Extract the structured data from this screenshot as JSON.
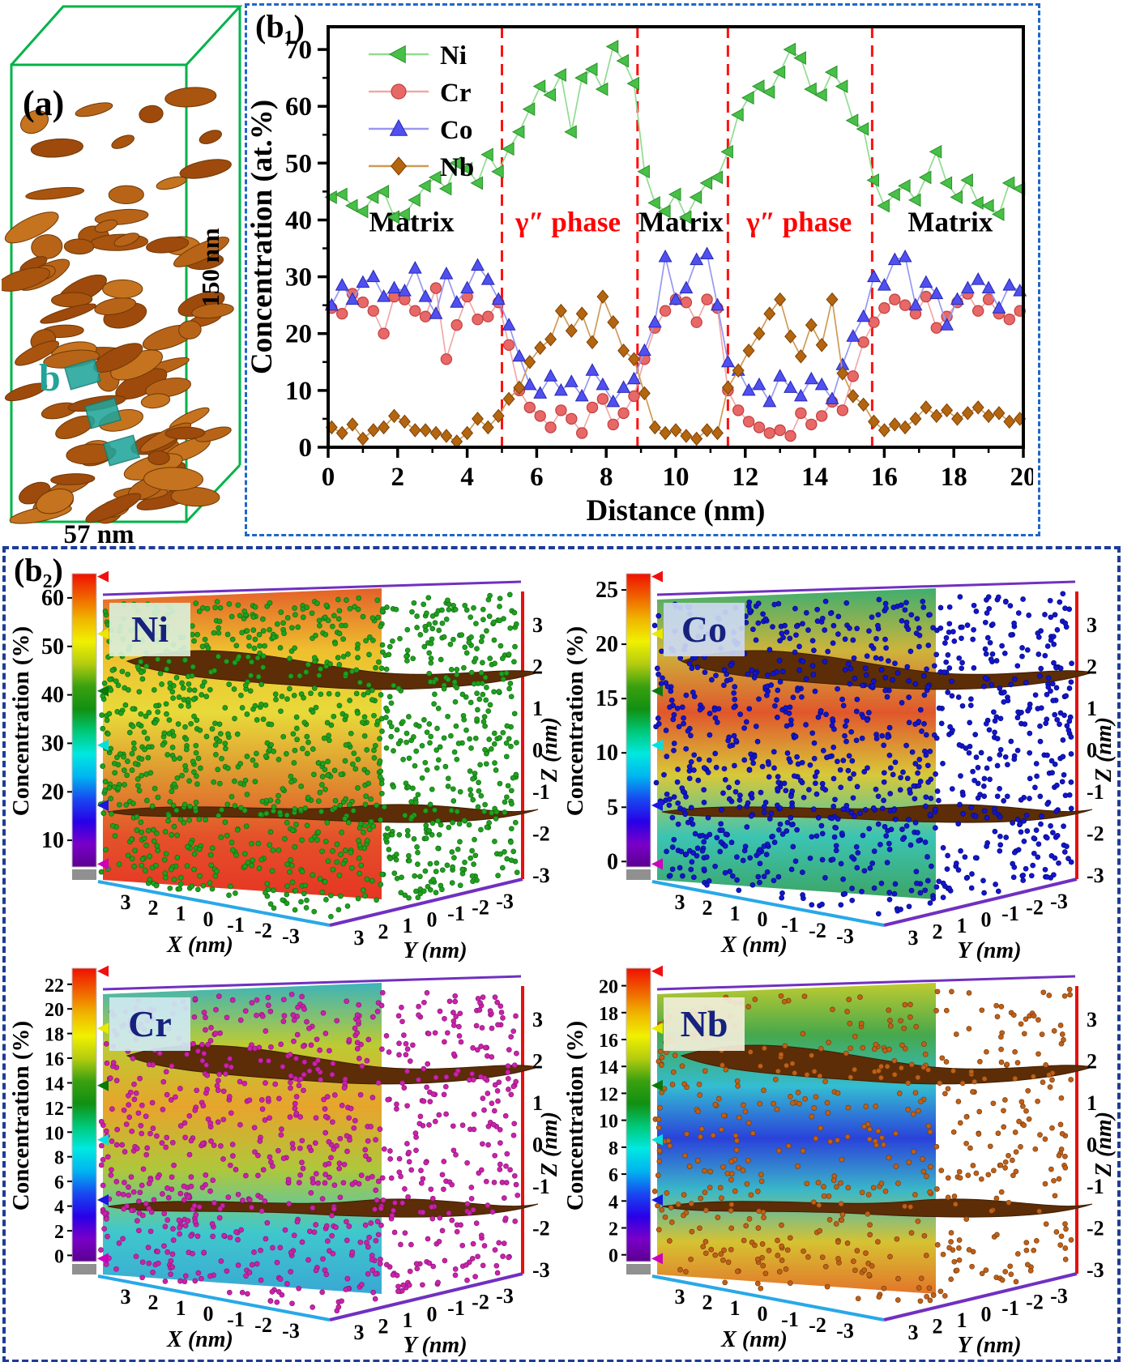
{
  "figure": {
    "panel_a_label": "(a)",
    "panel_b1_label": "(b₁)",
    "panel_b2_label": "(b₂)"
  },
  "panel_a": {
    "label": "(a)",
    "height_label": "150 nm",
    "width_label": "57 nm",
    "roi_label": "b",
    "box_color": "#00b34a",
    "roi_color": "#22a49a",
    "precipitate_shades": [
      "#a9540f",
      "#b86418",
      "#c5731f",
      "#9d4a0c"
    ]
  },
  "chart_data": [
    {
      "id": "b1_concentration_profile",
      "type": "line",
      "title": "",
      "xlabel": "Distance (nm)",
      "ylabel": "Concentration (at.%)",
      "xlim": [
        0,
        20
      ],
      "ylim": [
        0,
        74
      ],
      "xticks": [
        0,
        2,
        4,
        6,
        8,
        10,
        12,
        14,
        16,
        18,
        20
      ],
      "yticks": [
        0,
        10,
        20,
        30,
        40,
        50,
        60,
        70
      ],
      "grid": false,
      "legend_position": "top-left",
      "legend": [
        "Ni",
        "Cr",
        "Co",
        "Nb"
      ],
      "phase_boundaries": [
        5.0,
        8.9,
        11.5,
        15.65
      ],
      "boundary_line_color": "#ff1010",
      "region_labels": [
        {
          "text": "Matrix",
          "x": 2.4,
          "y": 38,
          "color": "#000000"
        },
        {
          "text": "γ″ phase",
          "x": 6.9,
          "y": 38,
          "color": "#ff0000"
        },
        {
          "text": "Matrix",
          "x": 10.15,
          "y": 38,
          "color": "#000000"
        },
        {
          "text": "γ″ phase",
          "x": 13.55,
          "y": 38,
          "color": "#ff0000"
        },
        {
          "text": "Matrix",
          "x": 17.9,
          "y": 38,
          "color": "#000000"
        }
      ],
      "x": [
        0.1,
        0.4,
        0.7,
        1,
        1.3,
        1.6,
        1.9,
        2.2,
        2.5,
        2.8,
        3.1,
        3.4,
        3.7,
        4,
        4.3,
        4.6,
        4.9,
        5.2,
        5.5,
        5.8,
        6.1,
        6.4,
        6.7,
        7,
        7.3,
        7.6,
        7.9,
        8.2,
        8.5,
        8.8,
        9.1,
        9.4,
        9.7,
        10,
        10.3,
        10.6,
        10.9,
        11.2,
        11.5,
        11.8,
        12.1,
        12.4,
        12.7,
        13,
        13.3,
        13.6,
        13.9,
        14.2,
        14.5,
        14.8,
        15.1,
        15.4,
        15.7,
        16,
        16.3,
        16.6,
        16.9,
        17.2,
        17.5,
        17.8,
        18.1,
        18.4,
        18.7,
        19,
        19.3,
        19.6,
        19.9
      ],
      "series": [
        {
          "name": "Ni",
          "marker": "triangle-left",
          "color": "#46c046",
          "edge": "#2e8f2e",
          "line_color": "#90dc90",
          "values": [
            44,
            44.5,
            42.5,
            41.5,
            44,
            45,
            40.5,
            41,
            43.5,
            46,
            47.5,
            45.5,
            50,
            49,
            46.5,
            51.5,
            48.5,
            52.5,
            55.5,
            59.5,
            63.5,
            62,
            65.5,
            55.5,
            65,
            66.5,
            63,
            70.5,
            68,
            64,
            48.5,
            43,
            41.5,
            44.5,
            40.5,
            44,
            46.5,
            47.5,
            52,
            58.5,
            61.5,
            63.5,
            62.5,
            66,
            70,
            68.5,
            63,
            62,
            66,
            63.5,
            57.5,
            56,
            47,
            42.5,
            44.5,
            46,
            43.5,
            47.5,
            52,
            46.5,
            44,
            47,
            43,
            42.5,
            41,
            46.5,
            45.5
          ]
        },
        {
          "name": "Cr",
          "marker": "circle",
          "color": "#e86868",
          "edge": "#c04040",
          "line_color": "#f0a8a8",
          "values": [
            24.5,
            23.5,
            27,
            25.5,
            24,
            20,
            26.5,
            26,
            24,
            23,
            28,
            15.5,
            21.5,
            26.5,
            22.5,
            23,
            25.5,
            18,
            10,
            7,
            5.5,
            3.5,
            6.5,
            5,
            2.5,
            7,
            8.5,
            4,
            6,
            9,
            15.5,
            21,
            24,
            26,
            25.5,
            22,
            26,
            24.5,
            10,
            6.5,
            4.5,
            3.5,
            2.5,
            3,
            2,
            6,
            4,
            5.5,
            8,
            6.5,
            12.5,
            18.5,
            22,
            24.5,
            26,
            25,
            23.5,
            26.5,
            21,
            23,
            25.5,
            27,
            24,
            26,
            23.5,
            22.5,
            24
          ]
        },
        {
          "name": "Co",
          "marker": "triangle-up",
          "color": "#5050f0",
          "edge": "#2828b0",
          "line_color": "#9898f0",
          "values": [
            25,
            28.5,
            26,
            29,
            30,
            26.5,
            28,
            27.5,
            31.5,
            26.5,
            23.5,
            30.5,
            25.5,
            28,
            32,
            29.5,
            26,
            21.5,
            16,
            11,
            9.5,
            12.5,
            10,
            11.5,
            9,
            13.5,
            11,
            8,
            10.5,
            12,
            17,
            22,
            33.5,
            26,
            28,
            33,
            34,
            25,
            15,
            13.5,
            10,
            11,
            8,
            12.5,
            10.5,
            9,
            12,
            11,
            8.5,
            14.5,
            19.5,
            23,
            30,
            28.5,
            33,
            33.5,
            25,
            29,
            27,
            21.5,
            26,
            28,
            29.5,
            28,
            24.5,
            28.5,
            27.5
          ]
        },
        {
          "name": "Nb",
          "marker": "diamond",
          "color": "#b4650f",
          "edge": "#7c4206",
          "line_color": "#cf9a55",
          "values": [
            3.5,
            2.5,
            4,
            1.5,
            3,
            3.5,
            5.5,
            4.5,
            3,
            3,
            2.5,
            2,
            1,
            2.5,
            5,
            3.5,
            5.5,
            8.5,
            10.5,
            15,
            17.5,
            19,
            24,
            20.5,
            23.5,
            18.5,
            26.5,
            22,
            17,
            15.5,
            9.5,
            3.5,
            2.5,
            3,
            2,
            1.5,
            3,
            2.5,
            10.5,
            13.5,
            17,
            20,
            23.5,
            26,
            19.5,
            16,
            21.5,
            18,
            26,
            13,
            9,
            7.5,
            4.5,
            3,
            4,
            3.5,
            5,
            7,
            5.5,
            6.5,
            5,
            6,
            7,
            5.5,
            6,
            4.5,
            5
          ]
        }
      ]
    },
    {
      "id": "b2_atom_maps",
      "type": "scatter",
      "render": "3d-atom-map-with-isosurfaces",
      "colorbar_label": "Concentration (%)",
      "x_label": "X (nm)",
      "y_label": "Y (nm)",
      "z_label": "Z (nm)",
      "x_ticks": [
        3,
        2,
        1,
        0,
        -1,
        -2,
        -3
      ],
      "y_ticks": [
        3,
        2,
        1,
        0,
        -1,
        -2,
        -3
      ],
      "z_ticks": [
        3,
        2,
        1,
        0,
        -1,
        -2,
        -3
      ],
      "isosurface_color": "#5c2d06",
      "isosurface_note": "two γ″ precipitate sheets near Z=2 and Z=-1.5",
      "colorbar_gradient_bottom_to_top": [
        "#5a0090",
        "#7a00c8",
        "#2800e8",
        "#1848f0",
        "#00b4f0",
        "#00e8e0",
        "#00c878",
        "#129012",
        "#3aa010",
        "#b4cc10",
        "#f0f000",
        "#f0b400",
        "#f06000",
        "#f01000"
      ],
      "colorbar_arrows": [
        {
          "color": "#f01010",
          "pos": 0.99
        },
        {
          "color": "#e8e800",
          "pos": 0.795
        },
        {
          "color": "#0a7a0a",
          "pos": 0.6
        },
        {
          "color": "#00e0e0",
          "pos": 0.415
        },
        {
          "color": "#1818e0",
          "pos": 0.21
        },
        {
          "color": "#cc00bb",
          "pos": 0.01
        }
      ],
      "subplots": [
        {
          "element": "Ni",
          "dot_color": "#1fa01f",
          "dot_edge": "#0f6e0f",
          "dot_count": 1250,
          "label_bg": "#d9efd9",
          "colorbar_ticks": [
            60,
            50,
            40,
            30,
            20,
            10
          ],
          "cb_vmax": 65,
          "cb_vmin": 4.5,
          "face_stops": [
            "#e4602a",
            "#eebf2e",
            "#e8da3a",
            "#de9630",
            "#e4512a",
            "#e63524"
          ]
        },
        {
          "element": "Co",
          "dot_color": "#1515cc",
          "dot_edge": "#000a80",
          "dot_count": 1050,
          "label_bg": "#ccd9f2",
          "colorbar_ticks": [
            25,
            20,
            15,
            10,
            5,
            0
          ],
          "cb_vmax": 26.5,
          "cb_vmin": -0.5,
          "face_stops": [
            "#3fae6e",
            "#cdb43b",
            "#e0572c",
            "#d8c838",
            "#3bc4b4",
            "#3da463"
          ]
        },
        {
          "element": "Cr",
          "dot_color": "#cc22aa",
          "dot_edge": "#8a1578",
          "dot_count": 900,
          "label_bg": "#cfe9f2",
          "colorbar_ticks": [
            22,
            20,
            18,
            16,
            14,
            12,
            10,
            8,
            6,
            4,
            2,
            0
          ],
          "cb_vmax": 23.3,
          "cb_vmin": -0.5,
          "face_stops": [
            "#3cb4ba",
            "#bccb33",
            "#e7a42c",
            "#aec73b",
            "#3fc8cc",
            "#39a8d4"
          ]
        },
        {
          "element": "Nb",
          "dot_color": "#c06018",
          "dot_edge": "#7a3c08",
          "dot_count": 560,
          "label_bg": "#f2eed9",
          "colorbar_ticks": [
            20,
            18,
            16,
            14,
            12,
            10,
            8,
            6,
            4,
            2,
            0
          ],
          "cb_vmax": 21.3,
          "cb_vmin": -0.5,
          "face_stops": [
            "#becb30",
            "#46a84c",
            "#34bcd2",
            "#2a42da",
            "#3ab8c8",
            "#d6c232",
            "#e4742a"
          ]
        }
      ]
    }
  ]
}
